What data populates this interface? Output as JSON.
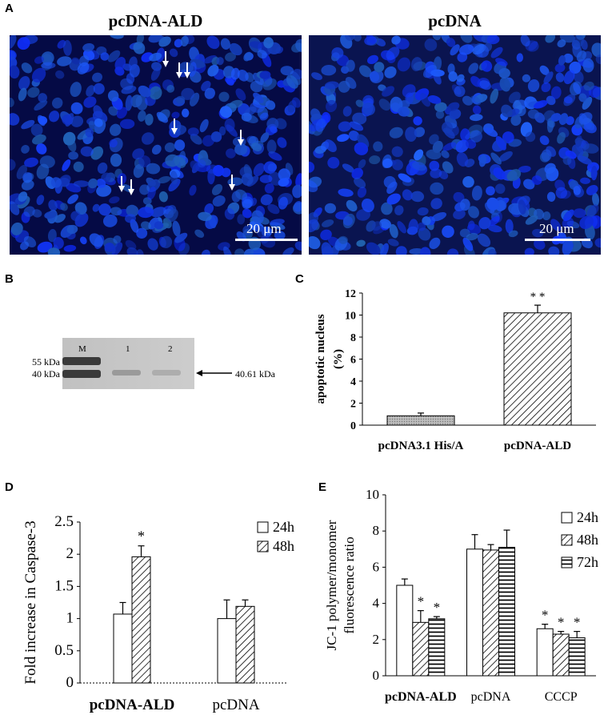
{
  "panelA": {
    "letter": "A",
    "left_title": "pcDNA-ALD",
    "right_title": "pcDNA",
    "left_scale": "20 μm",
    "right_scale": "20 μm",
    "arrow_count_left": 8
  },
  "panelB": {
    "letter": "B",
    "lane_labels": [
      "M",
      "1",
      "2"
    ],
    "marker_labels": [
      "55 kDa",
      "40 kDa"
    ],
    "arrow_label": "40.61 kDa"
  },
  "panelC": {
    "letter": "C",
    "significance": "* *"
  },
  "panelD": {
    "letter": "D",
    "legend": [
      "24h",
      "48h"
    ]
  },
  "panelE": {
    "letter": "E",
    "legend": [
      "24h",
      "48h",
      "72h"
    ]
  },
  "chart_data": [
    {
      "id": "C",
      "type": "bar",
      "categories": [
        "pcDNA3.1 His/A",
        "pcDNA-ALD"
      ],
      "values": [
        0.85,
        10.2
      ],
      "errors": [
        0.25,
        0.7
      ],
      "ylabel": "apoptotic nucleus (%)",
      "ylim": [
        0,
        12
      ],
      "yticks": [
        0,
        2,
        4,
        6,
        8,
        10,
        12
      ],
      "significance": [
        "",
        "* *"
      ]
    },
    {
      "id": "D",
      "type": "bar",
      "categories": [
        "pcDNA-ALD",
        "pcDNA"
      ],
      "series": [
        {
          "name": "24h",
          "values": [
            1.07,
            1.0
          ],
          "errors": [
            0.18,
            0.29
          ]
        },
        {
          "name": "48h",
          "values": [
            1.96,
            1.19
          ],
          "errors": [
            0.17,
            0.1
          ]
        }
      ],
      "ylabel": "Fold increase in Caspase-3",
      "ylim": [
        0,
        2.5
      ],
      "yticks": [
        "0",
        "0.5",
        "1",
        "1.5",
        "2",
        "2.5"
      ],
      "significance": [
        [
          "",
          "*"
        ],
        [
          "",
          ""
        ]
      ]
    },
    {
      "id": "E",
      "type": "bar",
      "categories": [
        "pcDNA-ALD",
        "pcDNA",
        "CCCP"
      ],
      "series": [
        {
          "name": "24h",
          "values": [
            5.0,
            7.0,
            2.6
          ],
          "errors": [
            0.35,
            0.8,
            0.25
          ]
        },
        {
          "name": "48h",
          "values": [
            2.95,
            6.95,
            2.3
          ],
          "errors": [
            0.65,
            0.3,
            0.15
          ]
        },
        {
          "name": "72h",
          "values": [
            3.15,
            7.1,
            2.1
          ],
          "errors": [
            0.12,
            0.95,
            0.35
          ]
        }
      ],
      "ylabel": "JC-1 polymer/monomer fluorescence ratio",
      "ylim": [
        0,
        10
      ],
      "yticks": [
        0,
        2,
        4,
        6,
        8,
        10
      ],
      "significance": [
        [
          "",
          "*",
          "*"
        ],
        [
          "",
          "",
          ""
        ],
        [
          "*",
          "*",
          "*"
        ]
      ]
    }
  ]
}
